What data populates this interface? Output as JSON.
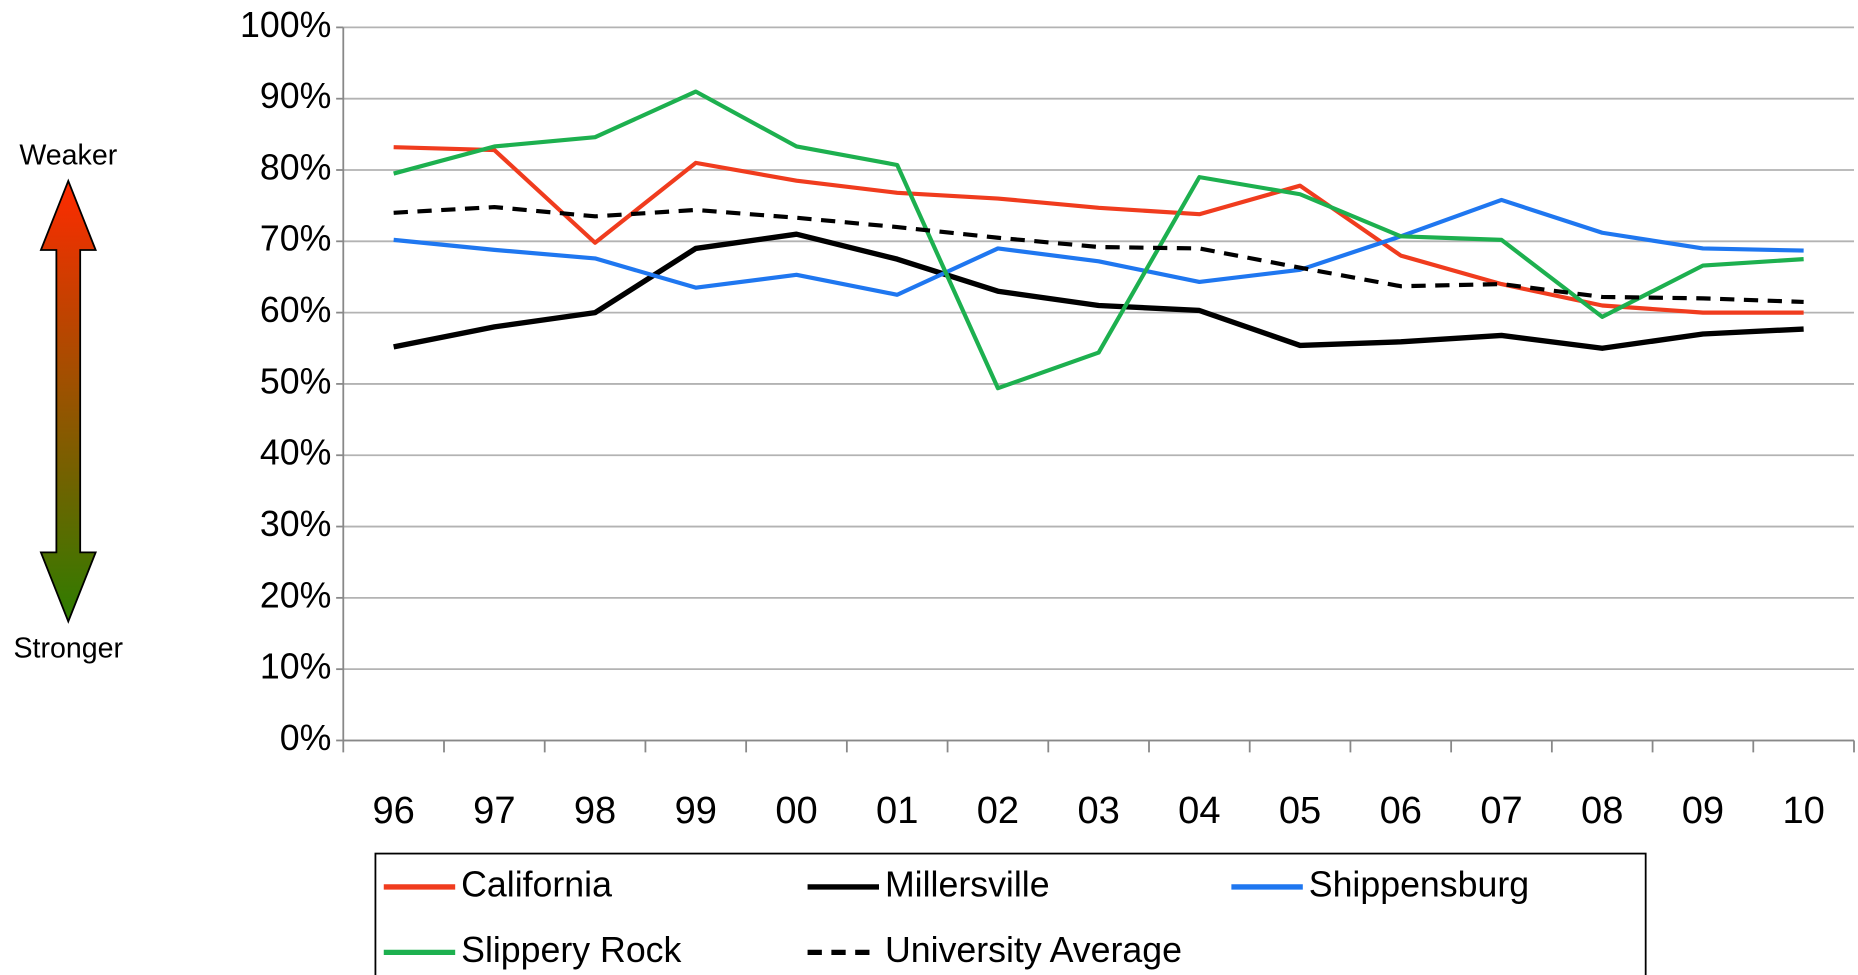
{
  "chart_data": {
    "type": "line",
    "annotations": {
      "top": "Weaker",
      "bottom": "Stronger"
    },
    "categories": [
      "96",
      "97",
      "98",
      "99",
      "00",
      "01",
      "02",
      "03",
      "04",
      "05",
      "06",
      "07",
      "08",
      "09",
      "10"
    ],
    "series": [
      {
        "name": "California",
        "color": "#f03c1e",
        "values": [
          83.2,
          82.8,
          69.8,
          81,
          78.5,
          76.8,
          76,
          74.7,
          73.8,
          77.8,
          68,
          64,
          61,
          60,
          60
        ]
      },
      {
        "name": "Millersville",
        "color": "#000000",
        "values": [
          55.2,
          58,
          60,
          69,
          71,
          67.5,
          63,
          61,
          60.3,
          55.4,
          55.9,
          56.8,
          55,
          57,
          57.7
        ]
      },
      {
        "name": "Shippensburg",
        "color": "#1f77f0",
        "values": [
          70.2,
          68.8,
          67.6,
          63.5,
          65.3,
          62.5,
          69,
          67.2,
          64.3,
          66,
          70.7,
          75.8,
          71.2,
          69,
          68.7
        ]
      },
      {
        "name": "Slippery Rock",
        "color": "#1db04f",
        "values": [
          79.5,
          83.3,
          84.6,
          91,
          83.3,
          80.7,
          49.4,
          54.4,
          79,
          76.6,
          70.7,
          70.2,
          59.4,
          66.6,
          67.5
        ]
      },
      {
        "name": "University Average",
        "color": "#000000",
        "dash": "dashed",
        "values": [
          74,
          74.8,
          73.5,
          74.4,
          73.3,
          72,
          70.5,
          69.2,
          69,
          66.3,
          63.7,
          64,
          62.2,
          62,
          61.5
        ]
      }
    ],
    "ylim": [
      0,
      100
    ],
    "yticks": [
      {
        "value": 0,
        "label": "0%"
      },
      {
        "value": 10,
        "label": "10%"
      },
      {
        "value": 20,
        "label": "20%"
      },
      {
        "value": 30,
        "label": "30%"
      },
      {
        "value": 40,
        "label": "40%"
      },
      {
        "value": 50,
        "label": "50%"
      },
      {
        "value": 60,
        "label": "60%"
      },
      {
        "value": 70,
        "label": "70%"
      },
      {
        "value": 80,
        "label": "80%"
      },
      {
        "value": 90,
        "label": "90%"
      },
      {
        "value": 100,
        "label": "100%"
      }
    ],
    "grid": true,
    "legend": "bottom"
  }
}
